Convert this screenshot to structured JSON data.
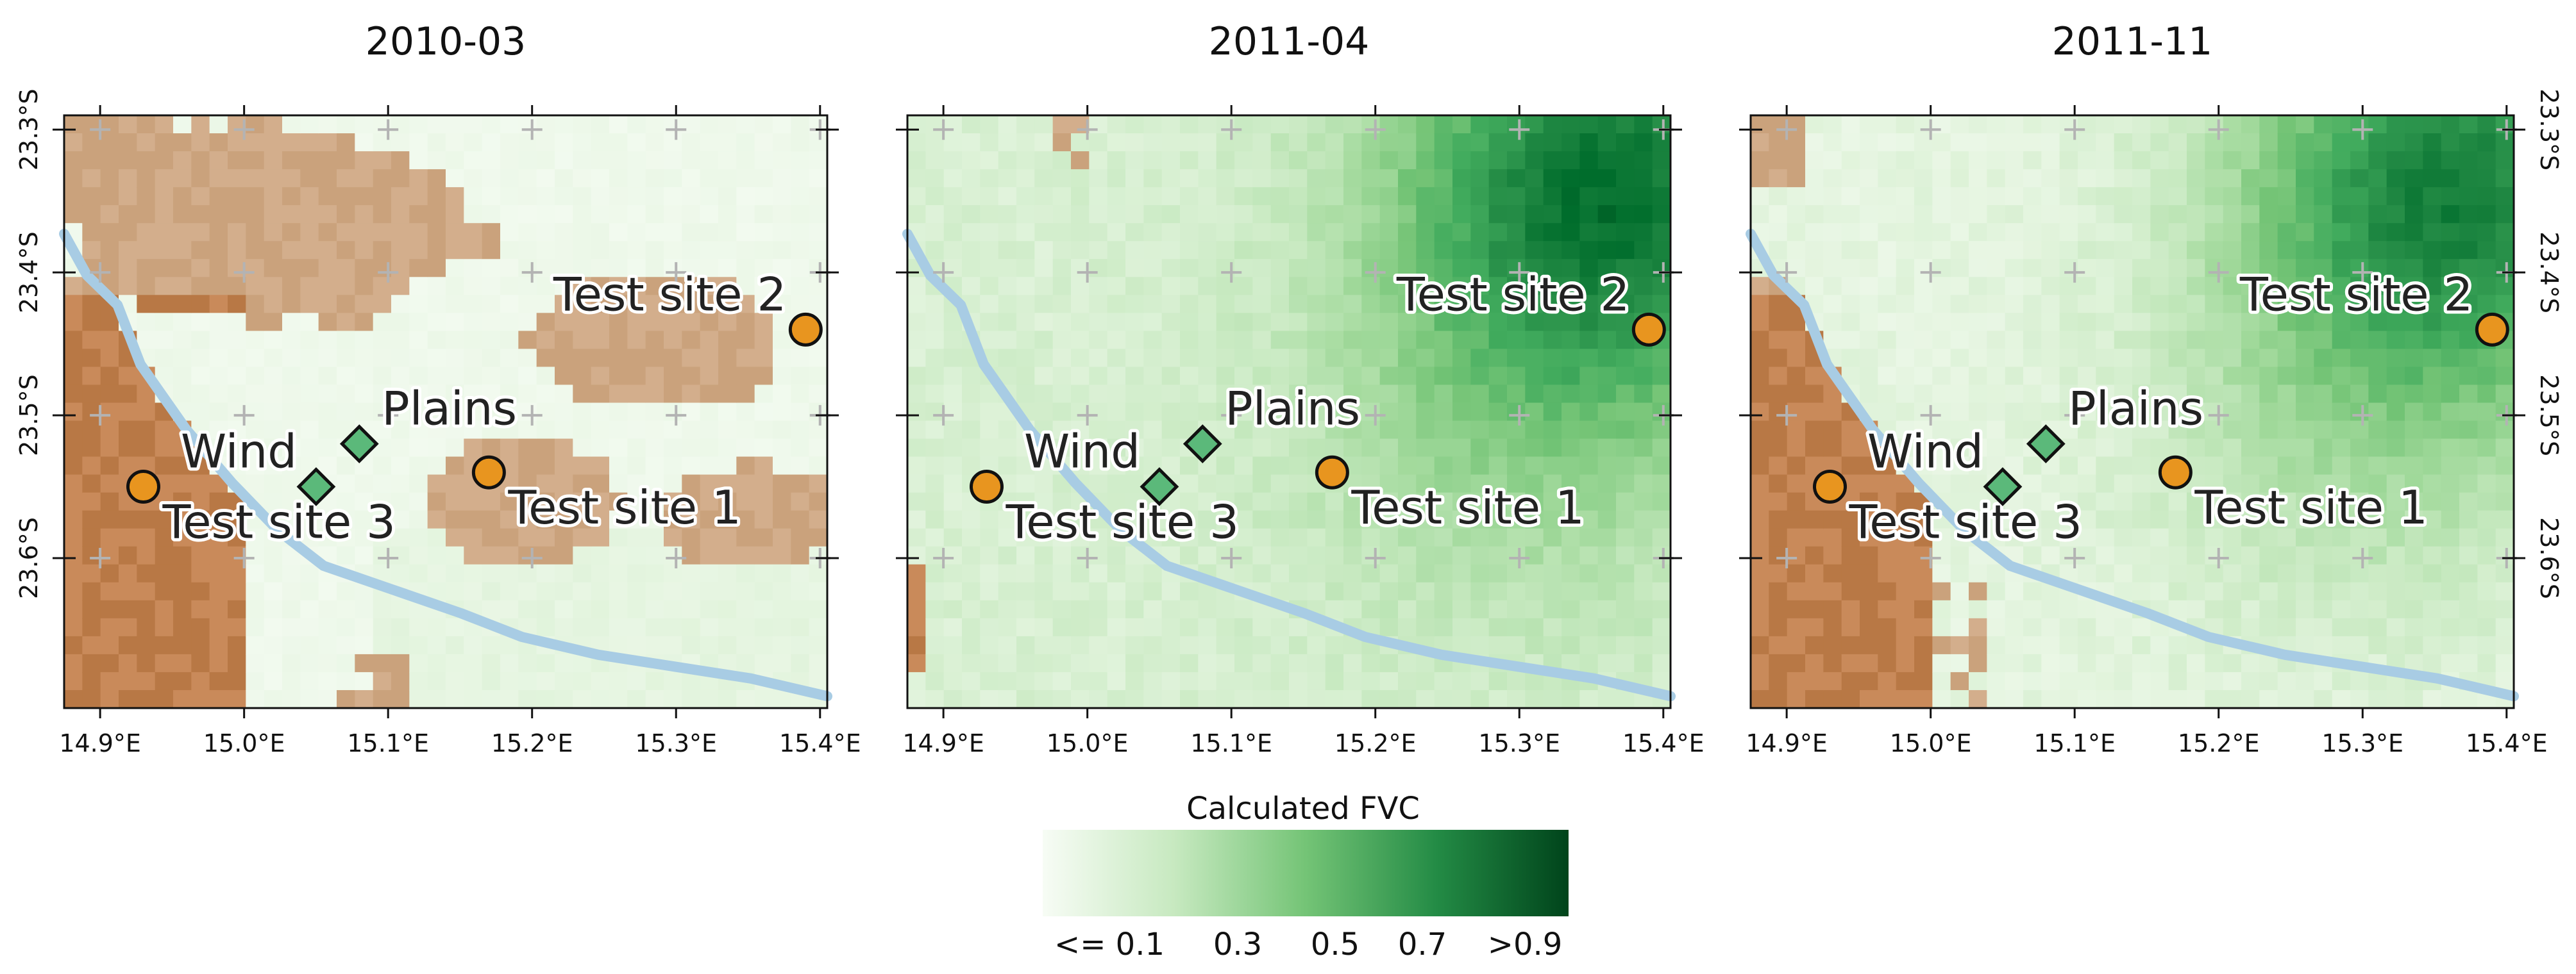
{
  "panels": [
    {
      "title": "2010-03",
      "scene": "dry"
    },
    {
      "title": "2011-04",
      "scene": "wet"
    },
    {
      "title": "2011-11",
      "scene": "mixed"
    }
  ],
  "lon_ticks": [
    "14.9°E",
    "15.0°E",
    "15.1°E",
    "15.2°E",
    "15.3°E",
    "15.4°E"
  ],
  "lon_values": [
    14.9,
    15.0,
    15.1,
    15.2,
    15.3,
    15.4
  ],
  "lat_ticks": [
    "23.3°S",
    "23.4°S",
    "23.5°S",
    "23.6°S"
  ],
  "lat_values": [
    -23.3,
    -23.4,
    -23.5,
    -23.6
  ],
  "extent": {
    "lon_min": 14.875,
    "lon_max": 15.405,
    "lat_min": -23.705,
    "lat_max": -23.29
  },
  "sites": [
    {
      "label": "Test site 1",
      "lon": 15.17,
      "lat": -23.54,
      "marker": "circle",
      "label_side": "below-right"
    },
    {
      "label": "Test site 2",
      "lon": 15.39,
      "lat": -23.44,
      "marker": "circle",
      "label_side": "above-left"
    },
    {
      "label": "Test site 3",
      "lon": 14.93,
      "lat": -23.55,
      "marker": "circle",
      "label_side": "below-right"
    },
    {
      "label": "Wind",
      "lon": 15.05,
      "lat": -23.55,
      "marker": "diamond",
      "label_side": "above-left"
    },
    {
      "label": "Plains",
      "lon": 15.08,
      "lat": -23.52,
      "marker": "diamond",
      "label_side": "above-right"
    }
  ],
  "colors": {
    "site_circle": "#e8951f",
    "site_diamond": "#5bb97a",
    "river": "#a8cce4",
    "sand": "#c98a5a",
    "dune": "#b87845",
    "fvc_low": "#f7fcf5",
    "fvc_high": "#00441b"
  },
  "colorbar": {
    "title": "Calculated FVC",
    "labels": [
      "<= 0.1",
      "0.3",
      "0.5",
      "0.7",
      ">0.9"
    ]
  }
}
